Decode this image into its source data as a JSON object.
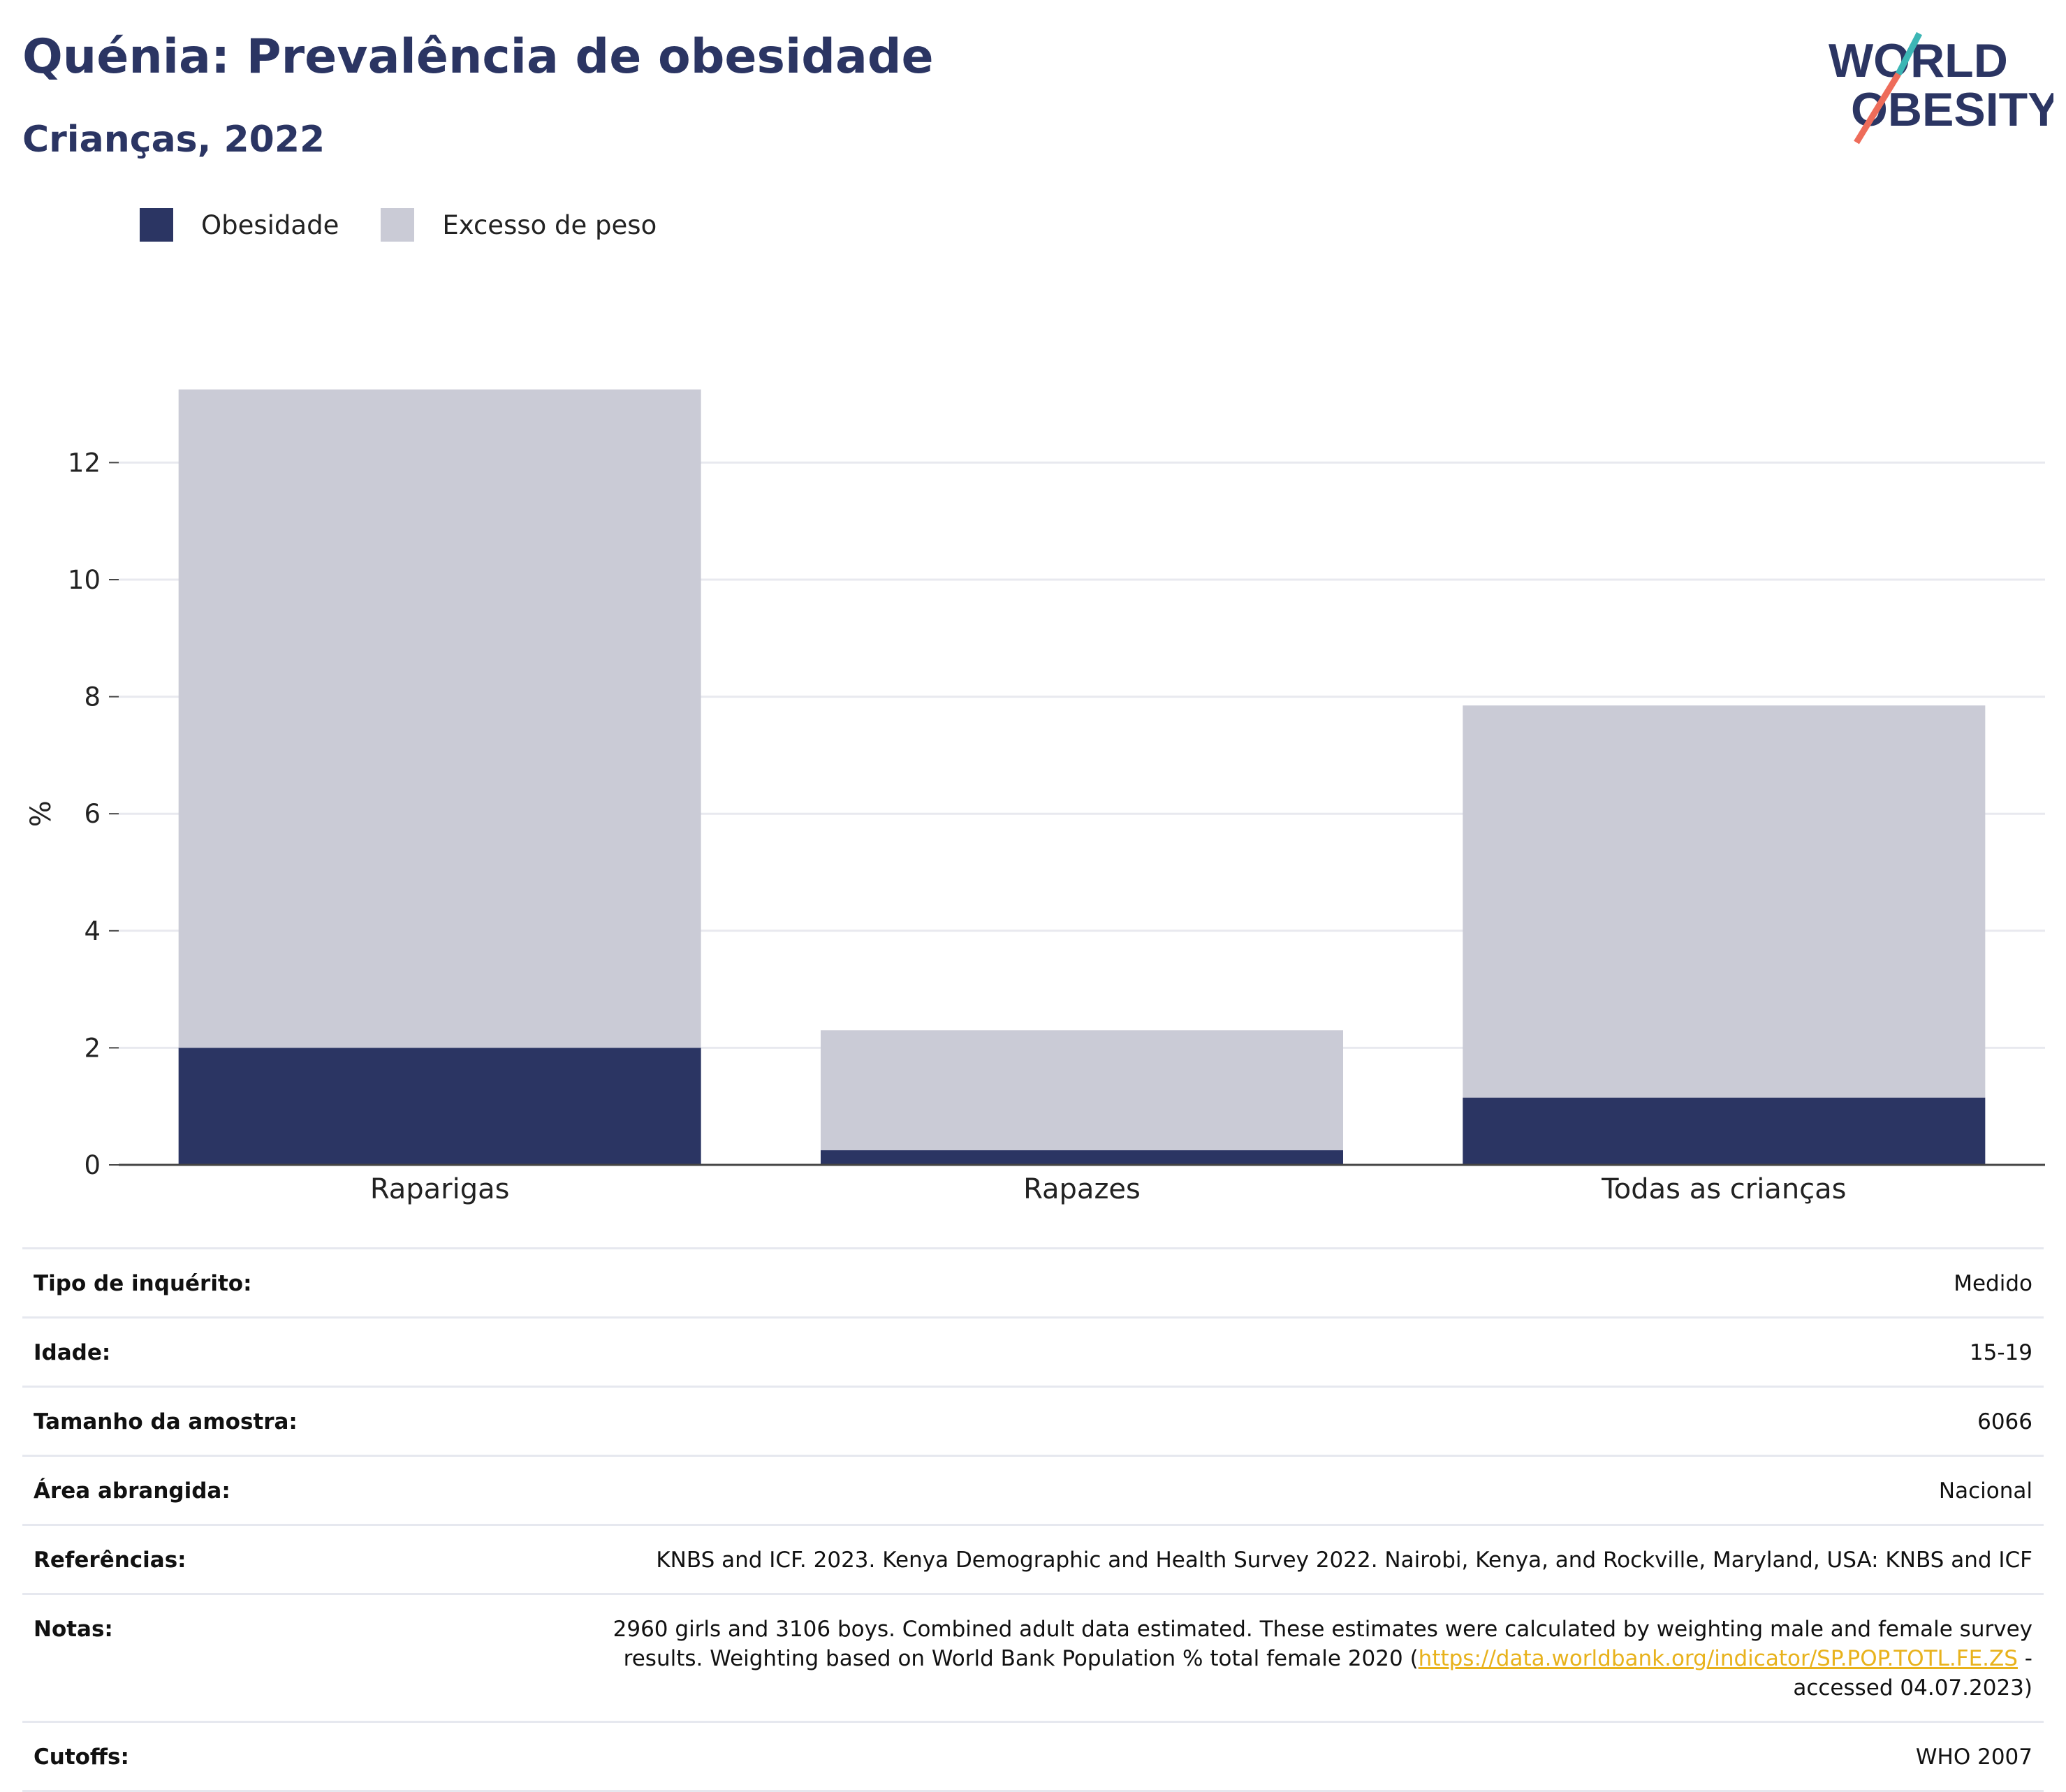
{
  "header": {
    "title": "Quénia: Prevalência de obesidade",
    "subtitle": "Crianças, 2022",
    "logo_line1": "WORLD",
    "logo_line2": "OBESITY"
  },
  "colors": {
    "obesity": "#2b3563",
    "overweight": "#cacbd6",
    "title": "#2b3563",
    "link": "#e8b21c"
  },
  "legend": {
    "obesity": "Obesidade",
    "overweight": "Excesso de peso"
  },
  "chart_data": {
    "type": "bar",
    "stacked": true,
    "categories": [
      "Raparigas",
      "Rapazes",
      "Todas as crianças"
    ],
    "series": [
      {
        "name": "Obesidade",
        "values": [
          2.0,
          0.25,
          1.15
        ]
      },
      {
        "name": "Excesso de peso",
        "values": [
          11.25,
          2.05,
          6.7
        ]
      }
    ],
    "ylabel": "%",
    "ylim": [
      0,
      14
    ],
    "yticks": [
      0,
      2,
      4,
      6,
      8,
      10,
      12
    ],
    "grid": true,
    "legend_position": "top-left"
  },
  "meta": {
    "survey_type_label": "Tipo de inquérito:",
    "survey_type": "Medido",
    "age_label": "Idade:",
    "age": "15-19",
    "sample_label": "Tamanho da amostra:",
    "sample": "6066",
    "area_label": "Área abrangida:",
    "area": "Nacional",
    "references_label": "Referências:",
    "references": "KNBS and ICF. 2023. Kenya Demographic and Health Survey 2022. Nairobi, Kenya, and Rockville, Maryland, USA: KNBS and ICF",
    "notes_label": "Notas:",
    "notes_pre": "2960 girls and 3106 boys. Combined adult data estimated. These estimates were calculated by weighting male and female survey results. Weighting based on World Bank Population % total female 2020 (",
    "notes_link": "https://data.worldbank.org/indicator/SP.POP.TOTL.FE.ZS",
    "notes_post": " - accessed 04.07.2023)",
    "cutoffs_label": "Cutoffs:",
    "cutoffs": "WHO 2007"
  }
}
